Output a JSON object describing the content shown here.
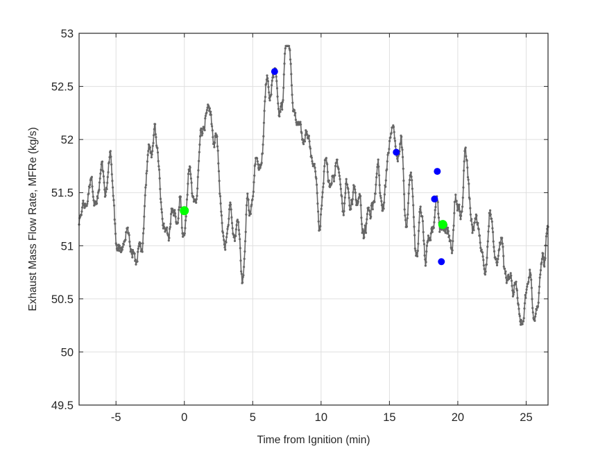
{
  "chart_data": {
    "type": "line",
    "title": "",
    "xlabel": "Time from Ignition (min)",
    "ylabel": "Exhaust Mass Flow Rate, MFRe (kg/s)",
    "xlim": [
      -7.7,
      26.6
    ],
    "ylim": [
      49.5,
      53
    ],
    "xticks": [
      -5,
      0,
      5,
      10,
      15,
      20,
      25
    ],
    "yticks": [
      49.5,
      50,
      50.5,
      51,
      51.5,
      52,
      52.5,
      53
    ],
    "xtick_labels": [
      "-5",
      "0",
      "5",
      "10",
      "15",
      "20",
      "25"
    ],
    "ytick_labels": [
      "49.5",
      "50",
      "50.5",
      "51",
      "51.5",
      "52",
      "52.5",
      "53"
    ],
    "grid": true,
    "legend": null,
    "series": [
      {
        "name": "MFRe",
        "style": "line with small dot markers",
        "color": "#666666",
        "sample_spacing_min": 0.0333,
        "envelope_keypoints": {
          "x": [
            -7.7,
            -6.8,
            -5.6,
            -4.7,
            -3.4,
            -2.4,
            -1.2,
            0,
            0.6,
            1.8,
            2.9,
            4.0,
            5.0,
            6.3,
            7.6,
            8.8,
            10.1,
            11.3,
            12.5,
            13.8,
            15.5,
            16.6,
            17.5,
            18.3,
            19.2,
            20.4,
            21.7,
            23.0,
            24.4,
            25.6,
            26.6
          ],
          "y": [
            51.2,
            51.45,
            51.75,
            51.05,
            50.9,
            51.9,
            51.3,
            51.2,
            51.55,
            52.25,
            51.15,
            50.95,
            51.6,
            52.5,
            52.6,
            52.0,
            51.5,
            51.65,
            51.35,
            51.4,
            51.85,
            51.3,
            51.05,
            51.3,
            51.05,
            51.55,
            51.1,
            50.95,
            50.55,
            50.5,
            50.95
          ]
        },
        "noise_amplitude": 0.38
      }
    ],
    "markers": [
      {
        "name": "ignition-start",
        "color": "#00ff00",
        "x": 0.0,
        "y": 51.33,
        "size": 13
      },
      {
        "name": "event-1",
        "color": "#0000ff",
        "x": 6.6,
        "y": 52.64,
        "size": 10
      },
      {
        "name": "event-2",
        "color": "#0000ff",
        "x": 15.5,
        "y": 51.88,
        "size": 10
      },
      {
        "name": "event-3",
        "color": "#0000ff",
        "x": 18.5,
        "y": 51.7,
        "size": 10
      },
      {
        "name": "event-4",
        "color": "#0000ff",
        "x": 18.3,
        "y": 51.44,
        "size": 10
      },
      {
        "name": "ignition-end",
        "color": "#00ff00",
        "x": 18.9,
        "y": 51.2,
        "size": 13
      },
      {
        "name": "event-5",
        "color": "#0000ff",
        "x": 18.8,
        "y": 50.85,
        "size": 10
      }
    ]
  },
  "colors": {
    "axis": "#262626",
    "grid": "#dfdfdf",
    "line": "#666666",
    "marker_green": "#00ff00",
    "marker_blue": "#0000ff"
  }
}
